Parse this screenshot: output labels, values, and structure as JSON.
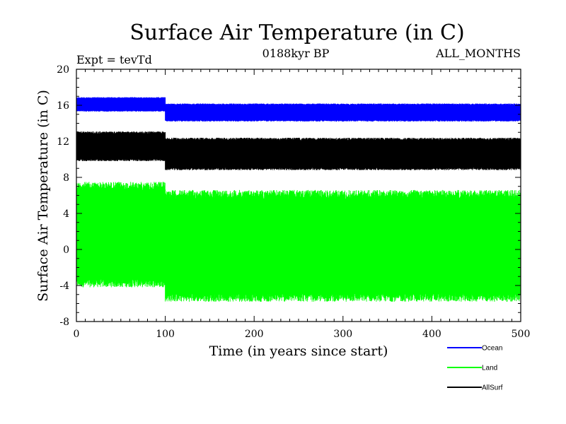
{
  "chart_data": {
    "type": "line",
    "title": "Surface Air Temperature (in C)",
    "subtitle_left": "Expt = tevTd",
    "subtitle_center": "0188kyr BP",
    "subtitle_right": "ALL_MONTHS",
    "xlabel": "Time (in years since start)",
    "ylabel": "Surface Air Temperature (in C)",
    "xlim": [
      0,
      500
    ],
    "ylim": [
      -8,
      20
    ],
    "xticks": [
      0,
      100,
      200,
      300,
      400,
      500
    ],
    "xtick_labels": [
      "0",
      "100",
      "200",
      "300",
      "400",
      "500"
    ],
    "yticks": [
      -8,
      -4,
      0,
      4,
      8,
      12,
      16,
      20
    ],
    "ytick_labels": [
      "-8",
      "-4",
      "0",
      "4",
      "8",
      "12",
      "16",
      "20"
    ],
    "legend_position": "bottom-right",
    "series": [
      {
        "name": "Ocean",
        "color": "#0000ff",
        "segments": [
          {
            "x_start": 0,
            "x_end": 100,
            "min": 15.3,
            "max": 16.9
          },
          {
            "x_start": 100,
            "x_end": 500,
            "min": 14.2,
            "max": 16.2
          }
        ]
      },
      {
        "name": "Land",
        "color": "#00ff00",
        "segments": [
          {
            "x_start": 0,
            "x_end": 100,
            "min": -4.2,
            "max": 7.5
          },
          {
            "x_start": 100,
            "x_end": 500,
            "min": -5.8,
            "max": 6.6
          }
        ]
      },
      {
        "name": "AllSurf",
        "color": "#000000",
        "segments": [
          {
            "x_start": 0,
            "x_end": 100,
            "min": 9.8,
            "max": 13.1
          },
          {
            "x_start": 100,
            "x_end": 500,
            "min": 8.8,
            "max": 12.4
          }
        ]
      }
    ]
  }
}
